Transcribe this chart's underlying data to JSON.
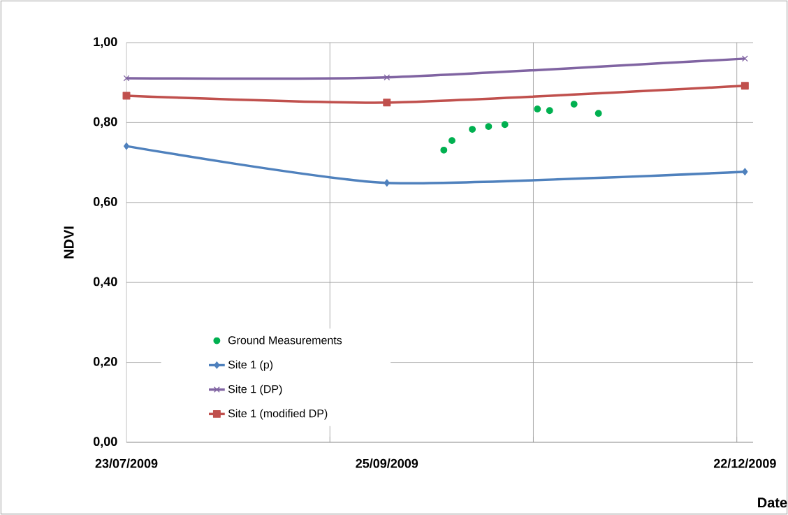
{
  "chart_data": {
    "type": "line",
    "xlabel": "Date",
    "ylabel": "NDVI",
    "xlim": [
      "2009-07-23",
      "2009-12-24"
    ],
    "ylim": [
      0,
      1
    ],
    "xticks": [
      {
        "value": "2009-07-23",
        "label": "23/07/2009"
      },
      {
        "value": "2009-09-25",
        "label": "25/09/2009"
      },
      {
        "value": "2009-12-22",
        "label": "22/12/2009"
      },
      {
        "value": "2009-09-11",
        "label": null
      },
      {
        "value": "2009-10-31",
        "label": null
      },
      {
        "value": "2009-12-20",
        "label": null
      }
    ],
    "yticks": [
      {
        "value": 0,
        "label": "0,00"
      },
      {
        "value": 0.2,
        "label": "0,20"
      },
      {
        "value": 0.4,
        "label": "0,40"
      },
      {
        "value": 0.6,
        "label": "0,60"
      },
      {
        "value": 0.8,
        "label": "0,80"
      },
      {
        "value": 1,
        "label": "1,00"
      }
    ],
    "grid": true,
    "legend": "bottom left",
    "series": [
      {
        "name": "Ground Measurements",
        "type": "scatter",
        "marker": "circle",
        "color": "#00b050",
        "x": [
          "2009-10-09",
          "2009-10-11",
          "2009-10-16",
          "2009-10-20",
          "2009-10-24",
          "2009-11-01",
          "2009-11-04",
          "2009-11-10",
          "2009-11-16"
        ],
        "values": [
          0.731,
          0.755,
          0.783,
          0.79,
          0.795,
          0.834,
          0.83,
          0.846,
          0.823
        ]
      },
      {
        "name": "Site 1 (p)",
        "marker": "diamond",
        "color": "#4f81bd",
        "x": [
          "2009-07-23",
          "2009-09-25",
          "2009-12-22"
        ],
        "values": [
          0.741,
          0.649,
          0.677
        ]
      },
      {
        "name": "Site 1 (DP)",
        "marker": "cross",
        "color": "#8064a2",
        "x": [
          "2009-07-23",
          "2009-09-25",
          "2009-12-22"
        ],
        "values": [
          0.911,
          0.913,
          0.96
        ]
      },
      {
        "name": "Site 1 (modified DP)",
        "marker": "square",
        "color": "#c0504d",
        "x": [
          "2009-07-23",
          "2009-09-25",
          "2009-12-22"
        ],
        "values": [
          0.867,
          0.85,
          0.892
        ]
      }
    ]
  }
}
